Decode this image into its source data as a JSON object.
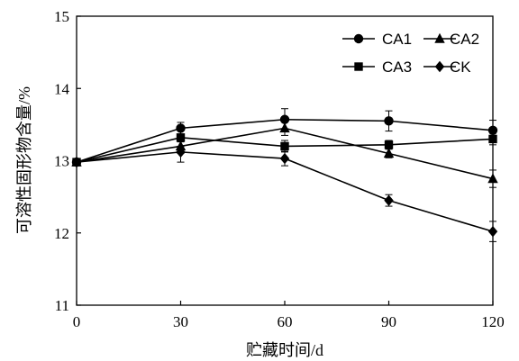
{
  "chart_data": {
    "type": "line",
    "xlabel": "贮藏时间/d",
    "ylabel": "可溶性固形物含量/%",
    "x": [
      0,
      30,
      60,
      90,
      120
    ],
    "xlim": [
      0,
      120
    ],
    "ylim": [
      11,
      15
    ],
    "xticks": [
      "0",
      "30",
      "60",
      "90",
      "120"
    ],
    "yticks": [
      "11",
      "12",
      "13",
      "14",
      "15"
    ],
    "grid": false,
    "legend_position": "top-right",
    "series": [
      {
        "name": "CA1",
        "marker": "circle",
        "values": [
          12.98,
          13.45,
          13.57,
          13.55,
          13.42
        ],
        "errors": [
          0.04,
          0.08,
          0.15,
          0.14,
          0.14
        ]
      },
      {
        "name": "CA2",
        "marker": "triangle",
        "values": [
          12.98,
          13.2,
          13.45,
          13.1,
          12.75
        ],
        "errors": [
          0.04,
          0.1,
          0.1,
          0.06,
          0.12
        ]
      },
      {
        "name": "CA3",
        "marker": "square",
        "values": [
          12.98,
          13.32,
          13.2,
          13.22,
          13.3
        ],
        "errors": [
          0.04,
          0.12,
          0.08,
          0.06,
          0.08
        ]
      },
      {
        "name": "CK",
        "marker": "diamond",
        "values": [
          12.98,
          13.12,
          13.03,
          12.45,
          12.02
        ],
        "errors": [
          0.04,
          0.14,
          0.1,
          0.08,
          0.14
        ]
      }
    ]
  }
}
